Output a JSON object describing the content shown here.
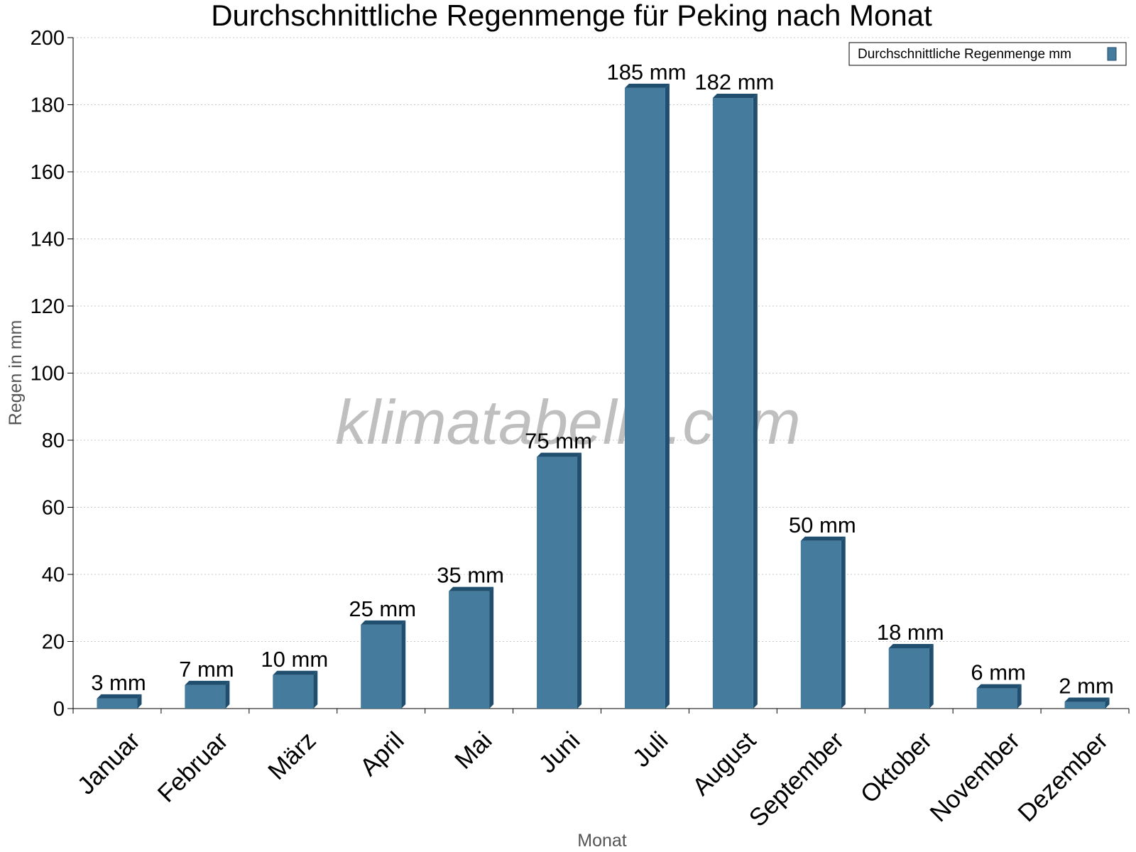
{
  "chart_data": {
    "type": "bar",
    "title": "Durchschnittliche Regenmenge für Peking nach Monat",
    "xlabel": "Monat",
    "ylabel": "Regen in mm",
    "ylim": [
      0,
      200
    ],
    "yticks": [
      0,
      20,
      40,
      60,
      80,
      100,
      120,
      140,
      160,
      180,
      200
    ],
    "grid": true,
    "legend_position": "top-right",
    "categories": [
      "Januar",
      "Februar",
      "März",
      "April",
      "Mai",
      "Juni",
      "Juli",
      "August",
      "September",
      "Oktober",
      "November",
      "Dezember"
    ],
    "series": [
      {
        "name": "Durchschnittliche Regenmenge mm",
        "values": [
          3,
          7,
          10,
          25,
          35,
          75,
          185,
          182,
          50,
          18,
          6,
          2
        ],
        "labels": [
          "3 mm",
          "7 mm",
          "10 mm",
          "25 mm",
          "35 mm",
          "75 mm",
          "185 mm",
          "182 mm",
          "50 mm",
          "18 mm",
          "6 mm",
          "2 mm"
        ],
        "color": "#457b9d",
        "shade_color": "#1f4e6e"
      }
    ],
    "watermark": "klimatabelle.com"
  }
}
